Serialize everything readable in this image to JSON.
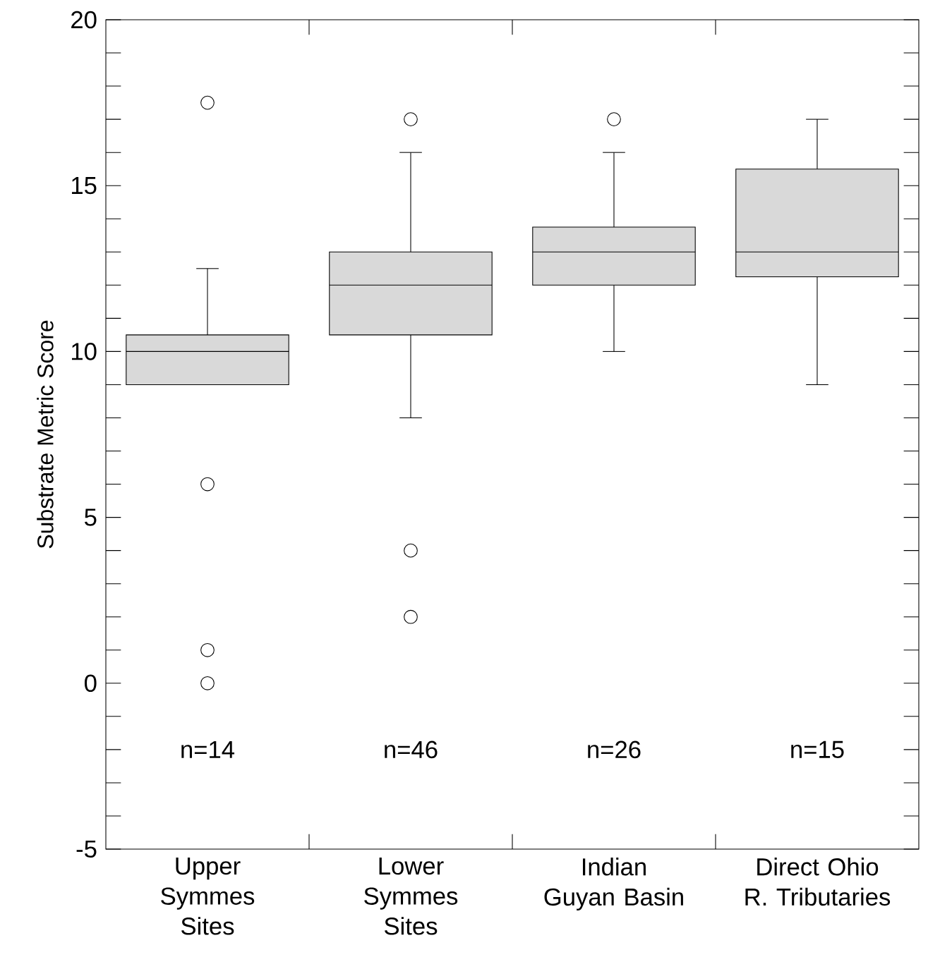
{
  "chart_data": {
    "type": "box",
    "ylabel": "Substrate Metric Score",
    "categories": [
      "Upper Symmes Sites",
      "Lower Symmes Sites",
      "Indian Guyan Basin",
      "Direct Ohio R. Tributaries"
    ],
    "boxes": [
      {
        "low": 9,
        "q1": 9,
        "median": 10,
        "q3": 10.5,
        "high": 12.5,
        "outliers": [
          17.5,
          6,
          1,
          0
        ]
      },
      {
        "low": 8,
        "q1": 10.5,
        "median": 12,
        "q3": 13,
        "high": 16,
        "outliers": [
          17,
          4,
          2
        ]
      },
      {
        "low": 10,
        "q1": 12,
        "median": 13,
        "q3": 13.75,
        "high": 16,
        "outliers": [
          17
        ]
      },
      {
        "low": 9,
        "q1": 12.25,
        "median": 13,
        "q3": 15.5,
        "high": 17
      }
    ],
    "color": "#d9d9d9",
    "ylim": [
      -5,
      20
    ],
    "yticks": [
      -5,
      0,
      5,
      10,
      15,
      20
    ],
    "annotations": [
      "n=14",
      "n=46",
      "n=26",
      "n=15"
    ]
  }
}
